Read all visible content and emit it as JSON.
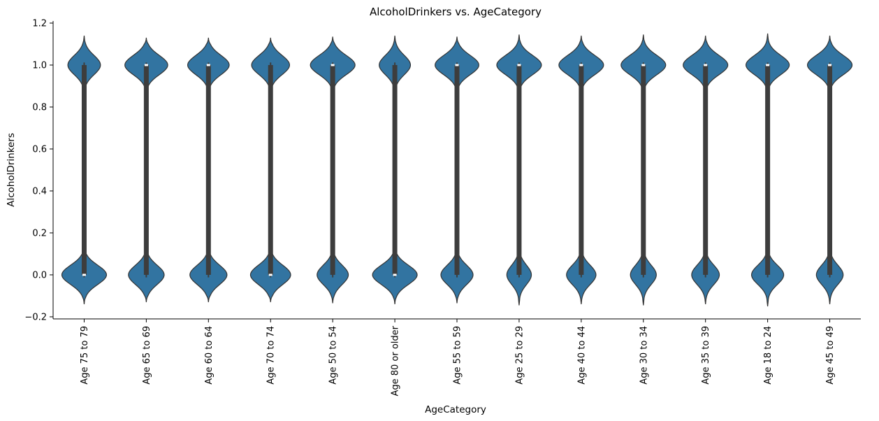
{
  "chart_data": {
    "type": "violin",
    "title": "AlcoholDrinkers vs. AgeCategory",
    "xlabel": "AgeCategory",
    "ylabel": "AlcoholDrinkers",
    "ylim": [
      -0.21,
      1.21
    ],
    "yticks": [
      -0.2,
      0.0,
      0.2,
      0.4,
      0.6,
      0.8,
      1.0,
      1.2
    ],
    "ytick_labels": [
      "−0.2",
      "0.0",
      "0.2",
      "0.4",
      "0.6",
      "0.8",
      "1.0",
      "1.2"
    ],
    "grid": false,
    "color": "#3274a1",
    "edge_color": "#333333",
    "box_color": "#3d3d3d",
    "categories": [
      "Age 75 to 79",
      "Age 65 to 69",
      "Age 60 to 64",
      "Age 70 to 74",
      "Age 50 to 54",
      "Age 80 or older",
      "Age 55 to 59",
      "Age 25 to 29",
      "Age 40 to 44",
      "Age 30 to 34",
      "Age 35 to 39",
      "Age 18 to 24",
      "Age 45 to 49"
    ],
    "violins": [
      {
        "min": -0.14,
        "max": 1.14,
        "w1": 0.73,
        "w0": 1.0,
        "q1": 0.0,
        "median": 0.0,
        "q3": 1.0
      },
      {
        "min": -0.13,
        "max": 1.13,
        "w1": 0.96,
        "w0": 0.8,
        "q1": 0.0,
        "median": 1.0,
        "q3": 1.0
      },
      {
        "min": -0.13,
        "max": 1.13,
        "w1": 0.93,
        "w0": 0.83,
        "q1": 0.0,
        "median": 1.0,
        "q3": 1.0
      },
      {
        "min": -0.13,
        "max": 1.13,
        "w1": 0.85,
        "w0": 0.9,
        "q1": 0.0,
        "median": 0.0,
        "q3": 1.0
      },
      {
        "min": -0.135,
        "max": 1.135,
        "w1": 1.0,
        "w0": 0.7,
        "q1": 0.0,
        "median": 1.0,
        "q3": 1.0
      },
      {
        "min": -0.14,
        "max": 1.14,
        "w1": 0.7,
        "w0": 1.0,
        "q1": 0.0,
        "median": 0.0,
        "q3": 1.0
      },
      {
        "min": -0.135,
        "max": 1.135,
        "w1": 0.98,
        "w0": 0.72,
        "q1": 0.0,
        "median": 1.0,
        "q3": 1.0
      },
      {
        "min": -0.145,
        "max": 1.145,
        "w1": 1.0,
        "w0": 0.55,
        "q1": 0.0,
        "median": 1.0,
        "q3": 1.0
      },
      {
        "min": -0.14,
        "max": 1.14,
        "w1": 1.0,
        "w0": 0.66,
        "q1": 0.0,
        "median": 1.0,
        "q3": 1.0
      },
      {
        "min": -0.145,
        "max": 1.145,
        "w1": 1.0,
        "w0": 0.58,
        "q1": 0.0,
        "median": 1.0,
        "q3": 1.0
      },
      {
        "min": -0.14,
        "max": 1.14,
        "w1": 1.0,
        "w0": 0.62,
        "q1": 0.0,
        "median": 1.0,
        "q3": 1.0
      },
      {
        "min": -0.15,
        "max": 1.15,
        "w1": 0.97,
        "w0": 0.72,
        "q1": 0.0,
        "median": 1.0,
        "q3": 1.0
      },
      {
        "min": -0.14,
        "max": 1.14,
        "w1": 1.0,
        "w0": 0.6,
        "q1": 0.0,
        "median": 1.0,
        "q3": 1.0
      }
    ]
  }
}
